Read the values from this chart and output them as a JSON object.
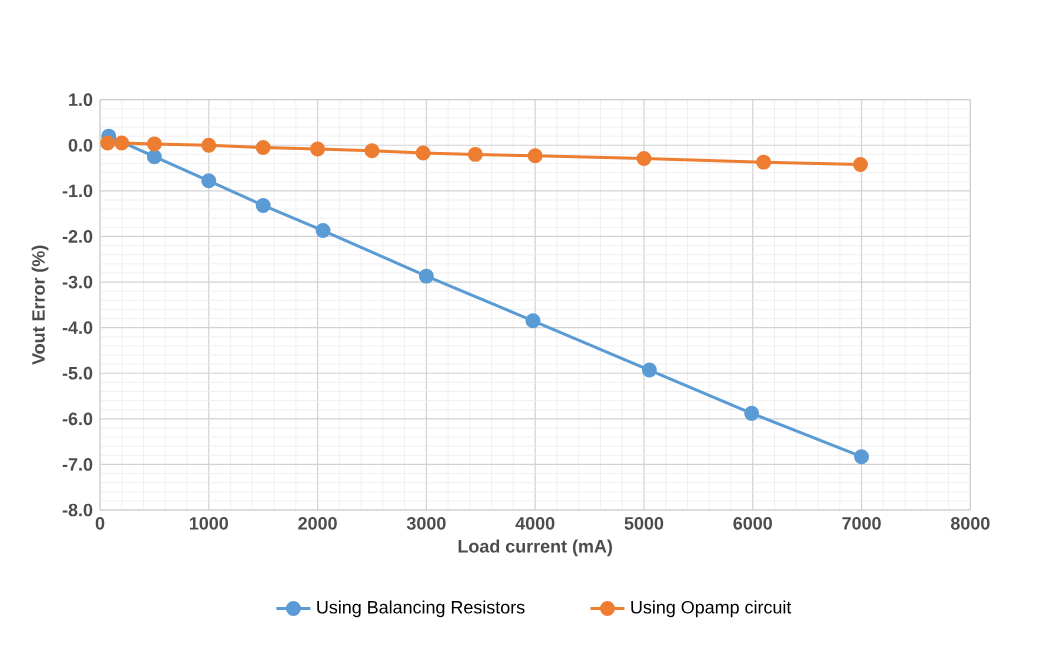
{
  "chart_data": {
    "type": "line",
    "xlabel": "Load current (mA)",
    "ylabel": "Vout Error (%)",
    "xlim": [
      0,
      8000
    ],
    "xticks": [
      0,
      1000,
      2000,
      3000,
      4000,
      5000,
      6000,
      7000,
      8000
    ],
    "ylim": [
      -8,
      1
    ],
    "yticks": [
      {
        "value": -8,
        "label": "-8.0"
      },
      {
        "value": -7,
        "label": "-7.0"
      },
      {
        "value": -6,
        "label": "-6.0"
      },
      {
        "value": -5,
        "label": "-5.0"
      },
      {
        "value": -4,
        "label": "-4.0"
      },
      {
        "value": -3,
        "label": "-3.0"
      },
      {
        "value": -2,
        "label": "-2.0"
      },
      {
        "value": -1,
        "label": "-1.0"
      },
      {
        "value": 0,
        "label": "0.0"
      },
      {
        "value": 1,
        "label": "1.0"
      }
    ],
    "grid": true,
    "legend": "bottom",
    "marker": "circle",
    "line_style": "solid",
    "series": [
      {
        "name": "Using Balancing Resistors",
        "color": "#5b9bd5",
        "x": [
          80,
          500,
          1000,
          1500,
          2050,
          3000,
          3980,
          5050,
          5990,
          7000
        ],
        "values": [
          0.2,
          -0.25,
          -0.78,
          -1.32,
          -1.87,
          -2.87,
          -3.85,
          -4.93,
          -5.88,
          -6.83
        ]
      },
      {
        "name": "Using Opamp circuit",
        "color": "#ed7d31",
        "x": [
          70,
          200,
          500,
          1000,
          1500,
          2000,
          2500,
          2970,
          3450,
          4000,
          5000,
          6100,
          6990
        ],
        "values": [
          0.05,
          0.05,
          0.03,
          0.0,
          -0.05,
          -0.08,
          -0.12,
          -0.17,
          -0.2,
          -0.23,
          -0.29,
          -0.37,
          -0.42
        ]
      }
    ]
  }
}
